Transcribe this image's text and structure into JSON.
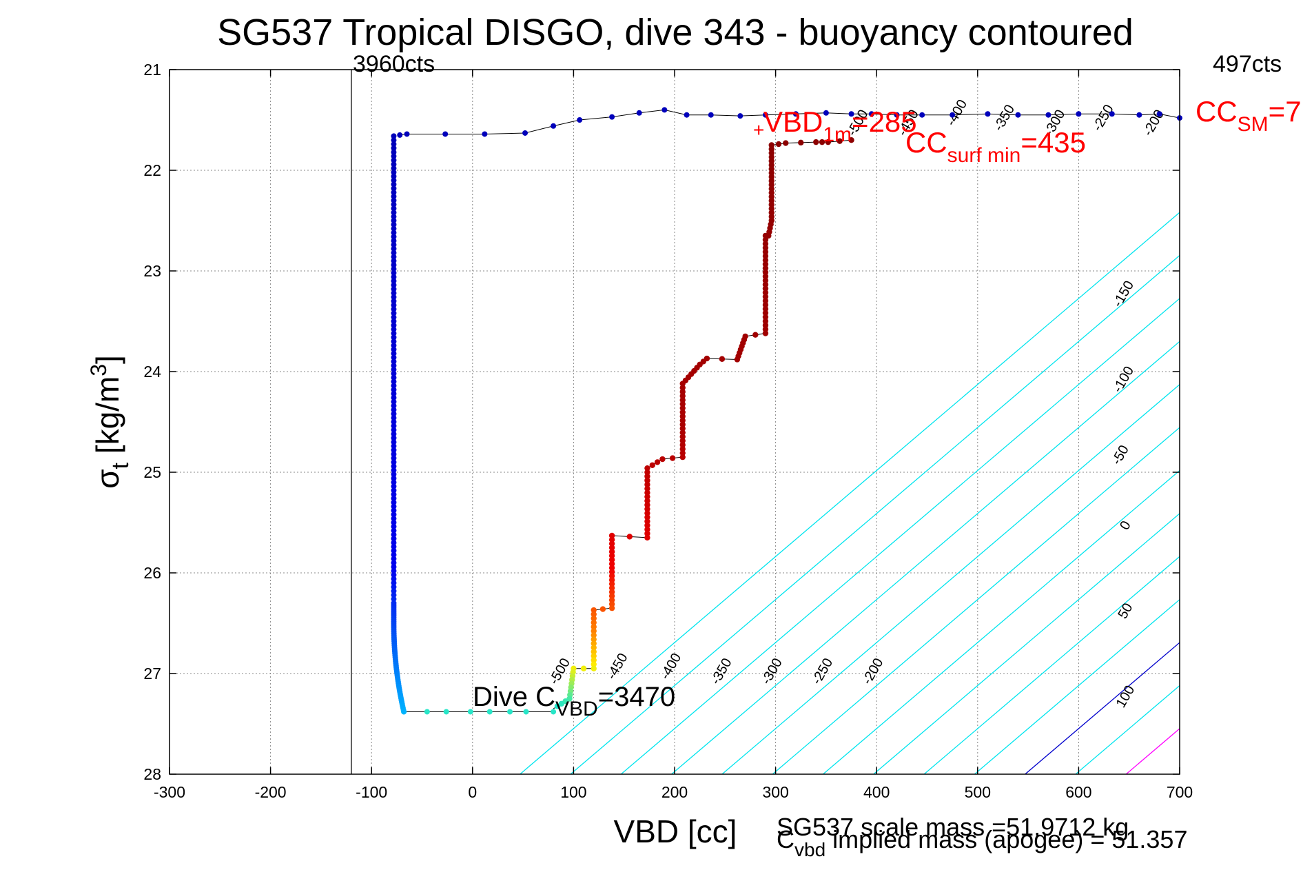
{
  "chart_data": {
    "type": "scatter",
    "title": "SG537 Tropical DISGO, dive 343 - buoyancy contoured",
    "xlabel": "VBD [cc]",
    "ylabel_main": "σ",
    "ylabel_sub": "t",
    "ylabel_rest": " [kg/m",
    "ylabel_sup": "3",
    "ylabel_end": "]",
    "xlim": [
      -300,
      700
    ],
    "ylim": [
      21,
      28
    ],
    "y_reversed": true,
    "grid": true,
    "xticks": [
      "-300",
      "-200",
      "-100",
      "0",
      "100",
      "200",
      "300",
      "400",
      "500",
      "600",
      "700"
    ],
    "yticks": [
      "21",
      "22",
      "23",
      "24",
      "25",
      "26",
      "27",
      "28"
    ],
    "colors": {
      "axes": "#000000",
      "grid": "#888888",
      "cyan_contour": "#00e5ee",
      "zero_contour": "#0000cc",
      "pos_contour": "#ff00ff",
      "annotation_red": "#ff0000",
      "climb_line": "#000000",
      "climb_points": "#0000bb"
    },
    "vline": {
      "x": -120,
      "label_left": "3960cts",
      "label_right": "497cts"
    },
    "contour_lines": [
      {
        "x0": -100,
        "x_at_28": 47,
        "slope_x_per_sigma": -117,
        "label": "-500",
        "color": "cyan_contour"
      },
      {
        "x0": -50,
        "x_at_28": 97,
        "slope_x_per_sigma": -117,
        "label": "-450",
        "color": "cyan_contour"
      },
      {
        "x0": 0,
        "x_at_28": 147,
        "slope_x_per_sigma": -117,
        "label": "-400",
        "color": "cyan_contour"
      },
      {
        "x0": 50,
        "x_at_28": 197,
        "slope_x_per_sigma": -117,
        "label": "-350",
        "color": "cyan_contour"
      },
      {
        "x0": 100,
        "x_at_28": 247,
        "slope_x_per_sigma": -117,
        "label": "-300",
        "color": "cyan_contour"
      },
      {
        "x0": 150,
        "x_at_28": 297,
        "slope_x_per_sigma": -117,
        "label": "-250",
        "color": "cyan_contour"
      },
      {
        "x0": 200,
        "x_at_28": 347,
        "slope_x_per_sigma": -117,
        "label": "-200",
        "color": "cyan_contour"
      },
      {
        "x0": 250,
        "x_at_28": 397,
        "slope_x_per_sigma": -117,
        "label": "-150",
        "color": "cyan_contour"
      },
      {
        "x0": 300,
        "x_at_28": 447,
        "slope_x_per_sigma": -117,
        "label": "-100",
        "color": "cyan_contour"
      },
      {
        "x0": 350,
        "x_at_28": 497,
        "slope_x_per_sigma": -117,
        "label": "-50",
        "color": "cyan_contour"
      },
      {
        "x0": 400,
        "x_at_28": 547,
        "slope_x_per_sigma": -117,
        "label": "0",
        "color": "zero_contour"
      },
      {
        "x0": 450,
        "x_at_28": 597,
        "slope_x_per_sigma": -117,
        "label": "50",
        "color": "cyan_contour"
      },
      {
        "x0": 500,
        "x_at_28": 647,
        "slope_x_per_sigma": -117,
        "label": "100",
        "color": "pos_contour"
      }
    ],
    "contour_label_positions": [
      {
        "label": "-500",
        "x": 90,
        "y": 27.0
      },
      {
        "label": "-450",
        "x": 147,
        "y": 26.95
      },
      {
        "label": "-400",
        "x": 200,
        "y": 26.95
      },
      {
        "label": "-350",
        "x": 250,
        "y": 27.0
      },
      {
        "label": "-300",
        "x": 300,
        "y": 27.0
      },
      {
        "label": "-250",
        "x": 350,
        "y": 27.0
      },
      {
        "label": "-200",
        "x": 400,
        "y": 27.0
      },
      {
        "label": "-150",
        "x": 648,
        "y": 23.25
      },
      {
        "label": "-100",
        "x": 648,
        "y": 24.1
      },
      {
        "label": "-50",
        "x": 645,
        "y": 24.85
      },
      {
        "label": "0",
        "x": 650,
        "y": 25.55
      },
      {
        "label": "50",
        "x": 650,
        "y": 26.4
      },
      {
        "label": "100",
        "x": 650,
        "y": 27.25
      },
      {
        "label": "-500",
        "x": 385,
        "y": 21.55
      },
      {
        "label": "-450",
        "x": 435,
        "y": 21.55
      },
      {
        "label": "-400",
        "x": 483,
        "y": 21.45
      },
      {
        "label": "-350",
        "x": 530,
        "y": 21.5
      },
      {
        "label": "-300",
        "x": 580,
        "y": 21.55
      },
      {
        "label": "-250",
        "x": 628,
        "y": 21.5
      },
      {
        "label": "-200",
        "x": 678,
        "y": 21.55
      }
    ],
    "climb_points": [
      [
        -72,
        21.65
      ],
      [
        -65,
        21.64
      ],
      [
        -27,
        21.64
      ],
      [
        12,
        21.64
      ],
      [
        52,
        21.63
      ],
      [
        80,
        21.56
      ],
      [
        106,
        21.5
      ],
      [
        138,
        21.47
      ],
      [
        165,
        21.43
      ],
      [
        190,
        21.4
      ],
      [
        212,
        21.45
      ],
      [
        236,
        21.45
      ],
      [
        265,
        21.46
      ],
      [
        290,
        21.45
      ],
      [
        320,
        21.44
      ],
      [
        350,
        21.43
      ],
      [
        375,
        21.44
      ],
      [
        395,
        21.44
      ],
      [
        420,
        21.45
      ],
      [
        445,
        21.45
      ],
      [
        475,
        21.45
      ],
      [
        510,
        21.44
      ],
      [
        540,
        21.45
      ],
      [
        570,
        21.45
      ],
      [
        600,
        21.44
      ],
      [
        633,
        21.44
      ],
      [
        660,
        21.45
      ],
      [
        680,
        21.44
      ],
      [
        700,
        21.48
      ]
    ],
    "descent_steps": [
      [
        375,
        21.7
      ],
      [
        352,
        21.72
      ],
      [
        340,
        21.72
      ],
      [
        310,
        21.73
      ],
      [
        296,
        21.75
      ],
      [
        296,
        22.5
      ],
      [
        293,
        22.65
      ],
      [
        290,
        22.65
      ],
      [
        290,
        23.62
      ],
      [
        270,
        23.65
      ],
      [
        262,
        23.88
      ],
      [
        232,
        23.87
      ],
      [
        225,
        23.93
      ],
      [
        208,
        24.12
      ],
      [
        208,
        24.85
      ],
      [
        188,
        24.87
      ],
      [
        173,
        24.96
      ],
      [
        173,
        25.65
      ],
      [
        138,
        25.63
      ],
      [
        138,
        26.35
      ],
      [
        120,
        26.37
      ],
      [
        120,
        26.95
      ],
      [
        100,
        26.95
      ],
      [
        96,
        27.25
      ],
      [
        80,
        27.35
      ]
    ],
    "dive_bottom_points": [
      [
        80,
        27.38
      ],
      [
        53,
        27.38
      ],
      [
        37,
        27.38
      ],
      [
        17,
        27.38
      ],
      [
        -2,
        27.38
      ],
      [
        -26,
        27.38
      ],
      [
        -45,
        27.38
      ],
      [
        -68,
        27.38
      ]
    ],
    "annotations": {
      "vbd_1m_main": "VBD",
      "vbd_1m_sub": "1m",
      "vbd_1m_val": "=285",
      "cc_surf_main": "CC",
      "cc_surf_sub": "surf min",
      "cc_surf_val": "=435",
      "cc_sm_main": "CC",
      "cc_sm_sub": "SM",
      "cc_sm_val": "=7",
      "dive_main": "Dive C",
      "dive_sub": "VBD",
      "dive_val": "=3470",
      "plus": "+"
    },
    "footer": {
      "scale_mass": "SG537 scale mass =51.9712 kg",
      "cvbd_main": "C",
      "cvbd_sub": "vbd",
      "cvbd_rest": " implied mass (apogee) = 51.357"
    }
  }
}
